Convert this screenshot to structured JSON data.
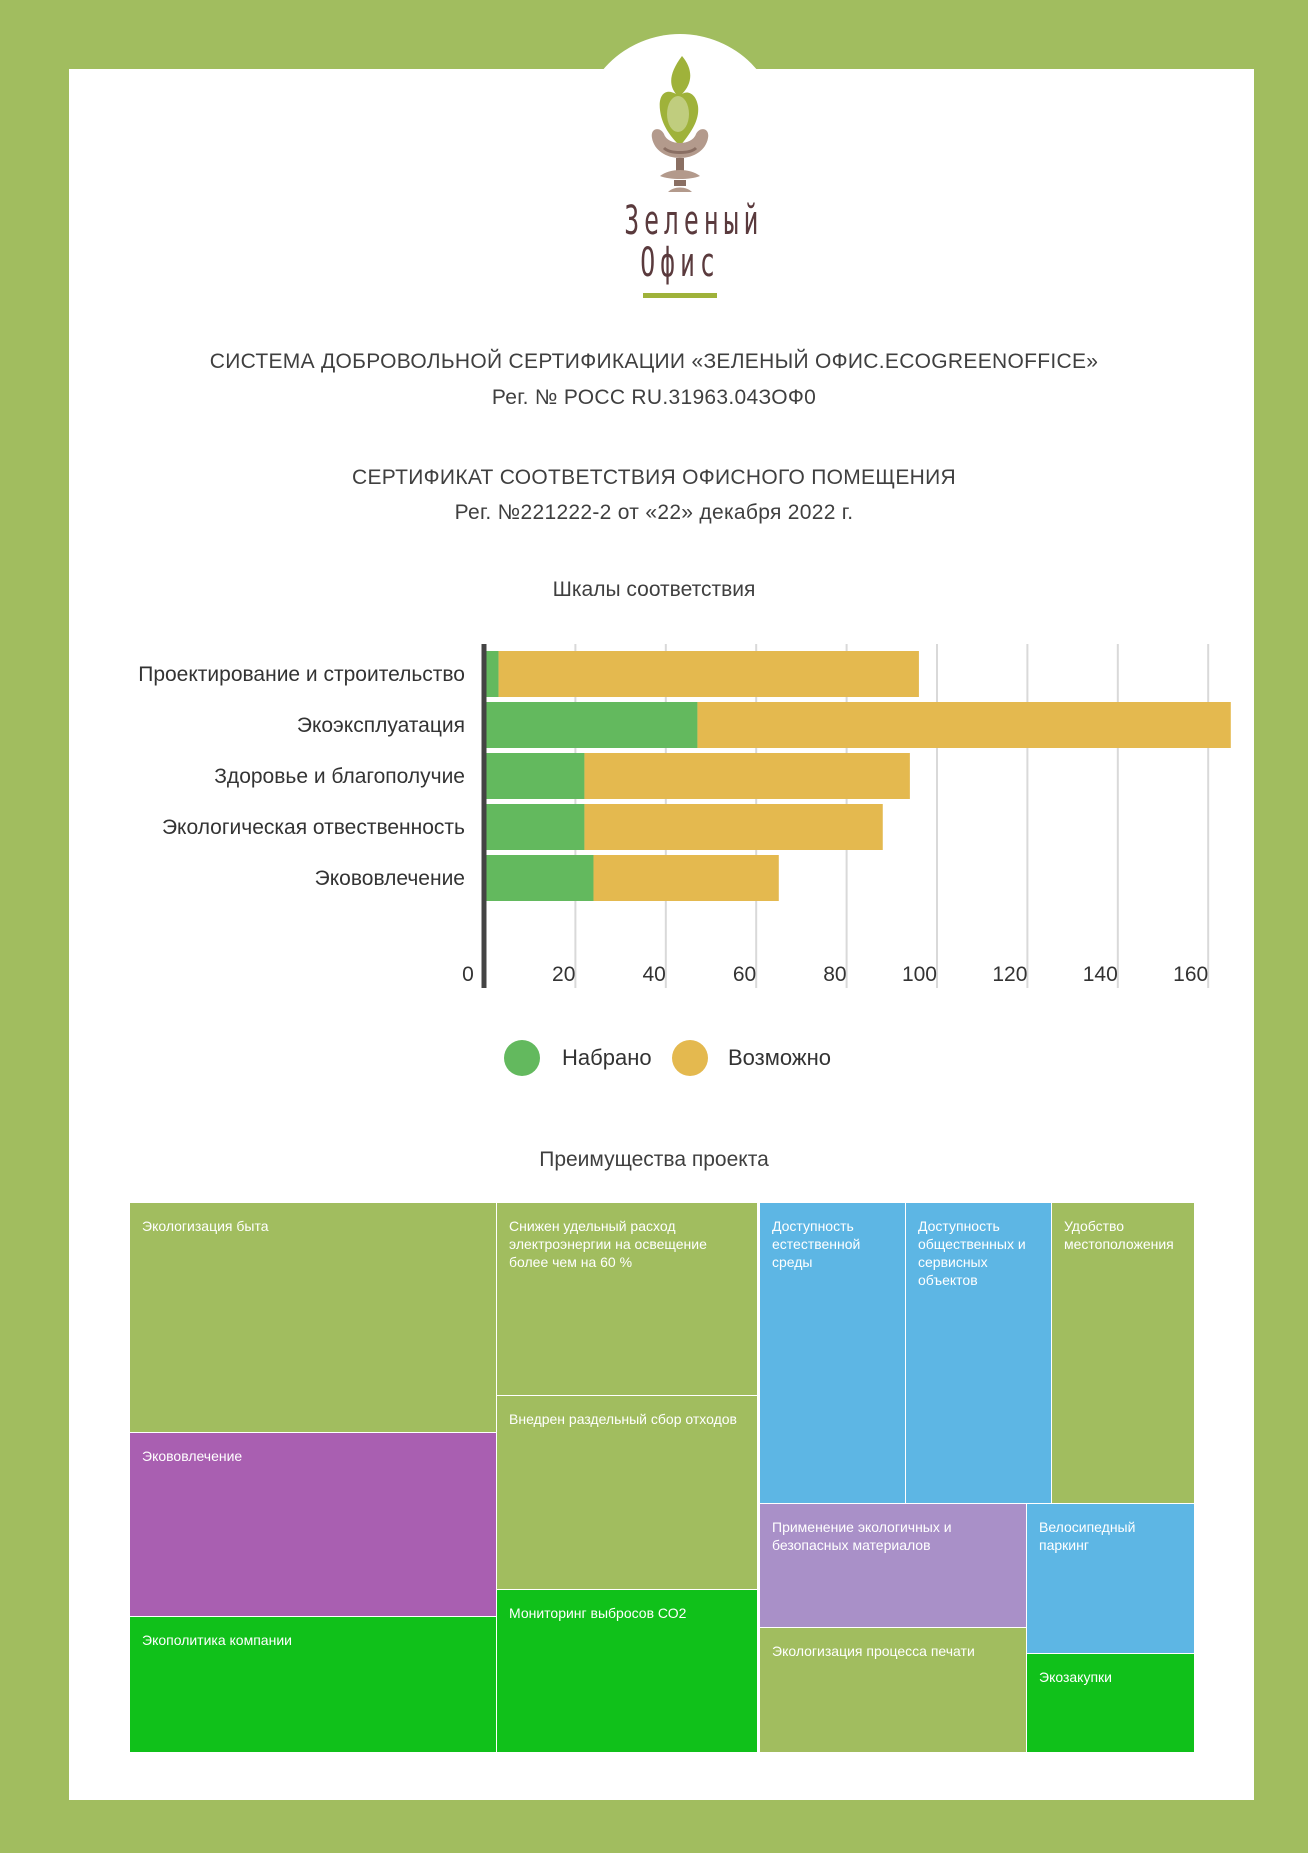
{
  "logo": {
    "line1": "Зеленый",
    "line2": "Офис"
  },
  "header": {
    "system": "СИСТЕМА ДОБРОВОЛЬНОЙ СЕРТИФИКАЦИИ «ЗЕЛЕНЫЙ ОФИС.ECOGREENOFFICE»",
    "system_reg": "Рег. № РОСС RU.31963.04ЗОФ0",
    "certificate": "СЕРТИФИКАТ СООТВЕТСТВИЯ ОФИСНОГО ПОМЕЩЕНИЯ",
    "certificate_reg": "Рег. №221222-2 от «22» декабря 2022 г."
  },
  "chart_data": {
    "type": "bar",
    "orientation": "horizontal",
    "stacked": true,
    "title": "Шкалы соответствия",
    "categories": [
      "Проектирование и строительство",
      "Экоэксплуатация",
      "Здоровье и благополучие",
      "Экологическая отвественность",
      "Экововлечение"
    ],
    "series": [
      {
        "name": "Набрано",
        "color": "#63b95e",
        "values": [
          3,
          47,
          22,
          22,
          24
        ]
      },
      {
        "name": "Возможно",
        "color": "#e4b94f",
        "values": [
          93,
          118,
          72,
          66,
          41
        ]
      }
    ],
    "xticks": [
      0,
      20,
      40,
      60,
      80,
      100,
      120,
      140,
      160
    ],
    "xlim": [
      0,
      165
    ],
    "grid": true,
    "legend": "bottom"
  },
  "benefits": {
    "title": "Преимущества проекта",
    "tiles": [
      {
        "label": "Экологизация быта",
        "color": "#a1bd5f"
      },
      {
        "label": "Экововлечение",
        "color": "#a95fb1"
      },
      {
        "label": "Экополитика компании",
        "color": "#10c11a"
      },
      {
        "label": "Снижен удельный расход электроэнергии на освещение более чем на 60 %",
        "color": "#a1bd5f"
      },
      {
        "label": "Внедрен раздельный сбор отходов",
        "color": "#a1bd5f"
      },
      {
        "label": "Мониторинг выбросов СО2",
        "color": "#10c11a"
      },
      {
        "label": "Доступность естественной среды",
        "color": "#5db6e4"
      },
      {
        "label": "Доступность общественных и сервисных объектов",
        "color": "#5db6e4"
      },
      {
        "label": "Удобство местоположения",
        "color": "#a1bd5f"
      },
      {
        "label": "Применение экологичных и безопасных материалов",
        "color": "#a990c8"
      },
      {
        "label": "Велосипедный паркинг",
        "color": "#5db6e4"
      },
      {
        "label": "Экологизация процесса печати",
        "color": "#a1bd5f"
      },
      {
        "label": "Экозакупки",
        "color": "#10c11a"
      }
    ]
  }
}
